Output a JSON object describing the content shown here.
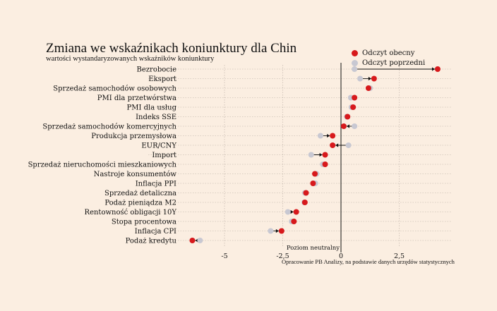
{
  "chart_title": "Zmiana we wskaźnikach koniunktury dla Chin",
  "chart_subtitle": "wartości wystandaryzowanych wskaźników koniunktury",
  "source_note": "Opracowanie PB Analizy, na podstawie danych urzędów statystycznych",
  "colors": {
    "background": "#fbeee1",
    "current": "#d7191c",
    "previous": "#c8c8d2",
    "gridline": "#b9aea4",
    "zero_line": "#111111"
  },
  "chart_data": {
    "type": "dumbbell",
    "title": "Zmiana we wskaźnikach koniunktury dla Chin",
    "subtitle": "wartości wystandaryzowanych wskaźników koniunktury",
    "categories": [
      "Bezrobocie",
      "Eksport",
      "Sprzedaż samochodów osobowych",
      "PMI dla przetwórstwa",
      "PMI dla usług",
      "Indeks SSE",
      "Sprzedaż samochodów komercyjnych",
      "Produkcja przemysłowa",
      "EUR/CNY",
      "Import",
      "Sprzedaż nieruchomości mieszkaniowych",
      "Nastroje konsumentów",
      "Inflacja PPI",
      "Sprzedaż detaliczna",
      "Podaż pieniądza M2",
      "Rentowność obligacji 10Y",
      "Stopa procentowa",
      "Inflacja CPI",
      "Podaż kredytu"
    ],
    "series": [
      {
        "name": "Odczyt obecny",
        "values": [
          4.15,
          1.42,
          1.18,
          0.58,
          0.52,
          0.28,
          0.12,
          -0.36,
          -0.36,
          -0.68,
          -0.68,
          -1.12,
          -1.2,
          -1.5,
          -1.55,
          -1.92,
          -2.02,
          -2.55,
          -6.38
        ]
      },
      {
        "name": "Odczyt poprzedni",
        "values": [
          0.58,
          0.82,
          1.25,
          0.42,
          0.45,
          0.25,
          0.58,
          -0.88,
          0.32,
          -1.28,
          -0.78,
          -1.05,
          -1.1,
          -1.55,
          -1.58,
          -2.28,
          -2.12,
          -3.02,
          -6.05
        ]
      }
    ],
    "x_ticks": [
      -5,
      -2.5,
      0,
      2.5
    ],
    "x_tick_labels": [
      "-5",
      "-2,5",
      "0",
      "2,5"
    ],
    "xlim": [
      -6.6,
      4.6
    ],
    "zero_line_label": "Poziom neutralny",
    "grid": true,
    "legend_position": "top-right"
  }
}
